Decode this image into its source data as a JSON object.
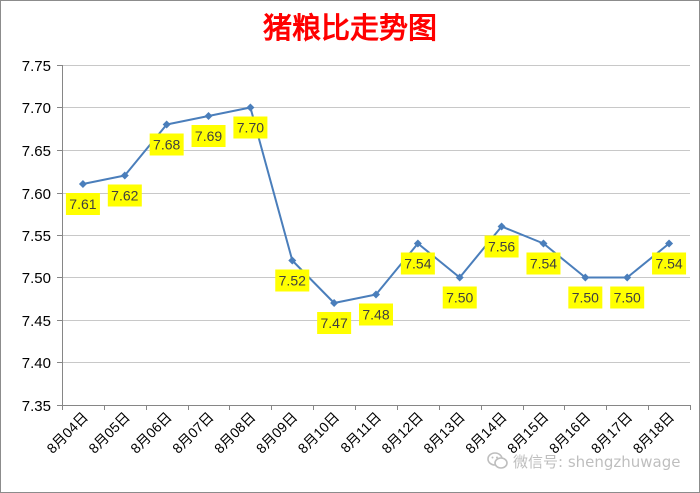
{
  "chart_data": {
    "type": "line",
    "title": "猪粮比走势图",
    "categories": [
      "8月04日",
      "8月05日",
      "8月06日",
      "8月07日",
      "8月08日",
      "8月09日",
      "8月10日",
      "8月11日",
      "8月12日",
      "8月13日",
      "8月14日",
      "8月15日",
      "8月16日",
      "8月17日",
      "8月18日"
    ],
    "series": [
      {
        "values": [
          7.61,
          7.62,
          7.68,
          7.69,
          7.7,
          7.52,
          7.47,
          7.48,
          7.54,
          7.5,
          7.56,
          7.54,
          7.5,
          7.5,
          7.54
        ]
      }
    ],
    "ylim": [
      7.35,
      7.75
    ],
    "yticks": [
      7.35,
      7.4,
      7.45,
      7.5,
      7.55,
      7.6,
      7.65,
      7.7,
      7.75
    ],
    "grid": true,
    "data_labels": true,
    "colors": {
      "title": "#ff0000",
      "line": "#4a7ebb",
      "label_background": "#ffff00",
      "label_text": "#404040",
      "gridline": "#c8c8c8",
      "axis": "#868686",
      "tick_text": "#000000"
    }
  },
  "watermark": {
    "icon": "wechat-icon",
    "text": "微信号: shengzhuwage"
  }
}
